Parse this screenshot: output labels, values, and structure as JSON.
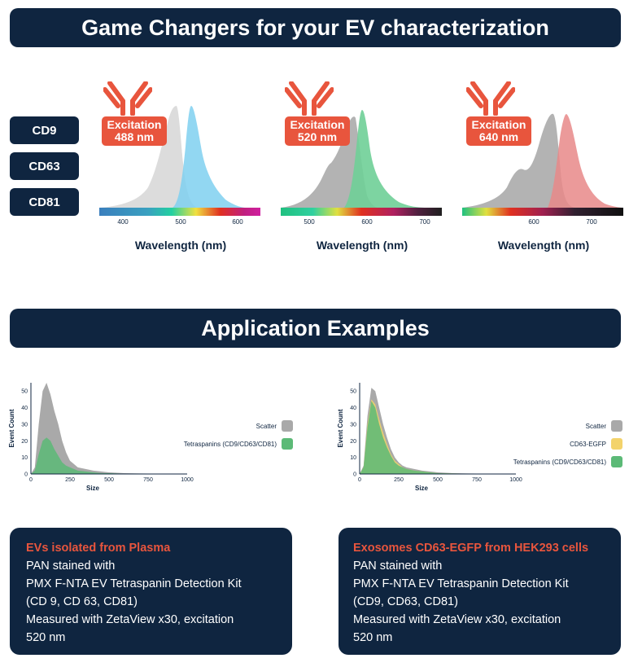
{
  "header": {
    "title": "Game Changers for your EV characterization"
  },
  "markers": [
    "CD9",
    "CD63",
    "CD81"
  ],
  "spectra": [
    {
      "excitation": "Excitation",
      "wavelength": "488 nm",
      "xlabel": "Wavelength (nm)",
      "ticks": [
        "400",
        "500",
        "600"
      ],
      "emission_color": "#7fd0f0"
    },
    {
      "excitation": "Excitation",
      "wavelength": "520 nm",
      "xlabel": "Wavelength (nm)",
      "ticks": [
        "500",
        "600",
        "700"
      ],
      "emission_color": "#6fcf97"
    },
    {
      "excitation": "Excitation",
      "wavelength": "640 nm",
      "xlabel": "Wavelength (nm)",
      "ticks": [
        "600",
        "700"
      ],
      "emission_color": "#e88888"
    }
  ],
  "section2": {
    "title": "Application Examples"
  },
  "chart_data": [
    {
      "type": "area",
      "xlabel": "Size",
      "ylabel": "Event Count",
      "xlim": [
        0,
        1000
      ],
      "ylim": [
        0,
        55
      ],
      "xticks": [
        "0",
        "250",
        "500",
        "750",
        "1000"
      ],
      "yticks": [
        "0",
        "10",
        "20",
        "30",
        "40",
        "50"
      ],
      "x": [
        0,
        25,
        50,
        75,
        100,
        125,
        150,
        175,
        200,
        225,
        250,
        275,
        300,
        350,
        400,
        450,
        500,
        600,
        700,
        800,
        900,
        1000
      ],
      "series": [
        {
          "name": "Scatter",
          "color": "#a9a9a9",
          "values": [
            0,
            4,
            30,
            50,
            55,
            48,
            38,
            30,
            20,
            13,
            8,
            6,
            4,
            3,
            2,
            1.5,
            1,
            0.5,
            0.3,
            0.2,
            0.1,
            0
          ]
        },
        {
          "name": "Tetraspanins (CD9/CD63/CD81)",
          "color": "#5cba77",
          "values": [
            0,
            2,
            12,
            20,
            22,
            20,
            15,
            11,
            7,
            5,
            4,
            3,
            2,
            1.5,
            1,
            0.5,
            0.5,
            0.2,
            0.1,
            0,
            0,
            0
          ]
        }
      ]
    },
    {
      "type": "area",
      "xlabel": "Size",
      "ylabel": "Event Count",
      "xlim": [
        0,
        1000
      ],
      "ylim": [
        0,
        55
      ],
      "xticks": [
        "0",
        "250",
        "500",
        "750",
        "1000"
      ],
      "yticks": [
        "0",
        "10",
        "20",
        "30",
        "40",
        "50"
      ],
      "x": [
        0,
        25,
        50,
        75,
        100,
        125,
        150,
        175,
        200,
        225,
        250,
        275,
        300,
        350,
        400,
        450,
        500,
        600,
        700,
        800,
        900,
        1000
      ],
      "series": [
        {
          "name": "Scatter",
          "color": "#a9a9a9",
          "values": [
            0,
            5,
            35,
            52,
            50,
            40,
            30,
            22,
            15,
            10,
            7,
            5,
            4,
            3,
            2,
            1.5,
            1,
            0.5,
            0.3,
            0.2,
            0.1,
            0
          ]
        },
        {
          "name": "CD63-EGFP",
          "color": "#f3d36b",
          "values": [
            0,
            4,
            30,
            45,
            42,
            33,
            25,
            18,
            12,
            8,
            6,
            4,
            3,
            2,
            1.5,
            1,
            0.5,
            0.3,
            0.2,
            0.1,
            0,
            0
          ]
        },
        {
          "name": "Tetraspanins (CD9/CD63/CD81)",
          "color": "#5cba77",
          "values": [
            0,
            4,
            28,
            44,
            40,
            30,
            22,
            16,
            11,
            7,
            5,
            4,
            3,
            2,
            1.5,
            1,
            0.5,
            0.3,
            0.2,
            0.1,
            0,
            0
          ]
        }
      ]
    }
  ],
  "cards": [
    {
      "title": "EVs isolated from Plasma",
      "lines": [
        "PAN stained with",
        "PMX F-NTA EV Tetraspanin Detection Kit",
        "(CD 9, CD 63, CD81)",
        "Measured with ZetaView x30, excitation",
        "520 nm"
      ]
    },
    {
      "title": "Exosomes CD63-EGFP from HEK293 cells",
      "lines": [
        "PAN stained with",
        "PMX F-NTA EV Tetraspanin Detection Kit",
        "(CD9, CD63, CD81)",
        "Measured with ZetaView x30, excitation",
        "520 nm"
      ]
    }
  ]
}
